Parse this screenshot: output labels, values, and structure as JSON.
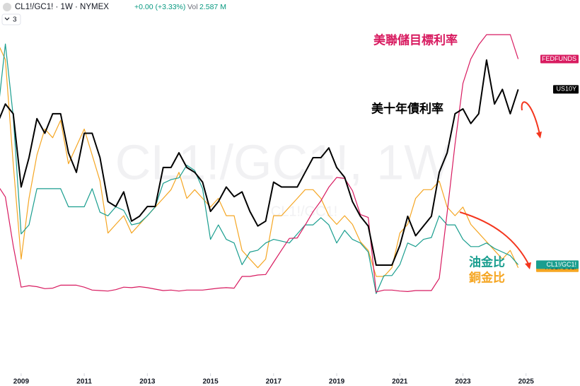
{
  "chart_data": {
    "type": "line",
    "header": {
      "symbol": "CL1!/GC1! · 1W · NYMEX",
      "change": "+0.00 (+3.33%)",
      "volume_label": "Vol",
      "volume": "2.587 M",
      "indicator_count": "3"
    },
    "watermark": "CL1!/GC1!, 1W",
    "watermark_subtitle": "CL1!/GC1!",
    "annotations": {
      "fed": "美聯儲目標利率",
      "us10y": "美十年債利率",
      "oil_gold": "油金比",
      "copper_gold": "銅金比"
    },
    "xlim": [
      2008.33,
      2026.71
    ],
    "xticks": [
      2009,
      2011,
      2013,
      2015,
      2017,
      2019,
      2021,
      2023,
      2025
    ],
    "x": [
      2008.25,
      2008.5,
      2008.75,
      2009,
      2009.25,
      2009.5,
      2009.75,
      2010,
      2010.25,
      2010.5,
      2010.75,
      2011,
      2011.25,
      2011.5,
      2011.75,
      2012,
      2012.25,
      2012.5,
      2012.75,
      2013,
      2013.25,
      2013.5,
      2013.75,
      2014,
      2014.25,
      2014.5,
      2014.75,
      2015,
      2015.25,
      2015.5,
      2015.75,
      2016,
      2016.25,
      2016.5,
      2016.75,
      2017,
      2017.25,
      2017.5,
      2017.75,
      2018,
      2018.25,
      2018.5,
      2018.75,
      2019,
      2019.25,
      2019.5,
      2019.75,
      2020,
      2020.25,
      2020.5,
      2020.75,
      2021,
      2021.25,
      2021.5,
      2021.75,
      2022,
      2022.25,
      2022.5,
      2022.75,
      2023,
      2023.25,
      2023.5,
      2023.75,
      2024,
      2024.25,
      2024.5,
      2024.75
    ],
    "series": [
      {
        "name": "FEDFUNDS",
        "color": "#d81b60",
        "ylim": [
          -1.5,
          5.75
        ],
        "values": [
          2.25,
          2.0,
          1.0,
          0.15,
          0.18,
          0.16,
          0.12,
          0.13,
          0.19,
          0.19,
          0.19,
          0.15,
          0.09,
          0.08,
          0.07,
          0.1,
          0.15,
          0.14,
          0.16,
          0.14,
          0.11,
          0.08,
          0.09,
          0.07,
          0.09,
          0.09,
          0.09,
          0.11,
          0.13,
          0.14,
          0.13,
          0.37,
          0.37,
          0.4,
          0.41,
          0.66,
          0.91,
          1.15,
          1.16,
          1.42,
          1.7,
          1.92,
          2.2,
          2.4,
          2.38,
          2.13,
          1.64,
          1.58,
          0.05,
          0.09,
          0.09,
          0.07,
          0.06,
          0.08,
          0.08,
          0.08,
          0.33,
          1.68,
          3.08,
          4.33,
          4.83,
          5.12,
          5.33,
          5.33,
          5.33,
          5.33,
          4.83
        ]
      },
      {
        "name": "US10Y",
        "color": "#000000",
        "ylim": [
          -1.4,
          5.84
        ],
        "values": [
          3.6,
          4.0,
          3.8,
          2.3,
          2.9,
          3.7,
          3.4,
          3.8,
          3.8,
          3.0,
          2.6,
          3.4,
          3.4,
          2.9,
          2.0,
          1.9,
          2.2,
          1.6,
          1.7,
          1.9,
          1.9,
          2.7,
          2.7,
          3.0,
          2.7,
          2.6,
          2.4,
          1.8,
          2.0,
          2.3,
          2.1,
          2.2,
          1.8,
          1.5,
          1.6,
          2.4,
          2.3,
          2.3,
          2.3,
          2.6,
          2.9,
          2.9,
          3.1,
          2.7,
          2.5,
          2.0,
          1.7,
          1.5,
          0.7,
          0.7,
          0.7,
          1.1,
          1.7,
          1.3,
          1.5,
          1.7,
          2.6,
          3.0,
          3.8,
          3.9,
          3.6,
          3.8,
          4.9,
          4.0,
          4.3,
          3.8,
          4.3
        ]
      },
      {
        "name": "CL1!/GC1!",
        "color": "#1a9e8f",
        "ylim": [
          -0.0289,
          0.1665
        ],
        "values": [
          0.11,
          0.15,
          0.11,
          0.045,
          0.05,
          0.07,
          0.07,
          0.07,
          0.07,
          0.06,
          0.06,
          0.06,
          0.07,
          0.057,
          0.055,
          0.06,
          0.058,
          0.05,
          0.051,
          0.055,
          0.06,
          0.073,
          0.075,
          0.076,
          0.083,
          0.08,
          0.07,
          0.042,
          0.05,
          0.042,
          0.04,
          0.028,
          0.035,
          0.036,
          0.04,
          0.042,
          0.041,
          0.04,
          0.045,
          0.05,
          0.05,
          0.054,
          0.05,
          0.04,
          0.047,
          0.042,
          0.04,
          0.035,
          0.012,
          0.022,
          0.022,
          0.028,
          0.04,
          0.038,
          0.042,
          0.043,
          0.055,
          0.05,
          0.05,
          0.042,
          0.038,
          0.038,
          0.04,
          0.037,
          0.035,
          0.033,
          0.028
        ]
      },
      {
        "name": "HG1!/GC1!",
        "color": "#f5a623",
        "ylim": [
          0.000448,
          0.004525
        ],
        "values": [
          0.0042,
          0.004,
          0.0028,
          0.0017,
          0.0024,
          0.0029,
          0.0032,
          0.0031,
          0.0033,
          0.0028,
          0.003,
          0.0032,
          0.0029,
          0.0026,
          0.002,
          0.0021,
          0.0022,
          0.002,
          0.0021,
          0.0022,
          0.0023,
          0.0024,
          0.0025,
          0.0027,
          0.0024,
          0.0025,
          0.0024,
          0.0023,
          0.0024,
          0.0022,
          0.0022,
          0.0018,
          0.0017,
          0.0016,
          0.0017,
          0.0022,
          0.0022,
          0.0023,
          0.0024,
          0.0025,
          0.0025,
          0.0024,
          0.0022,
          0.0021,
          0.0022,
          0.0021,
          0.0019,
          0.0018,
          0.0015,
          0.0015,
          0.0016,
          0.002,
          0.0021,
          0.0024,
          0.0025,
          0.0025,
          0.0026,
          0.0023,
          0.0022,
          0.0023,
          0.0021,
          0.002,
          0.0019,
          0.0018,
          0.0017,
          0.0018,
          0.0016
        ]
      }
    ]
  }
}
